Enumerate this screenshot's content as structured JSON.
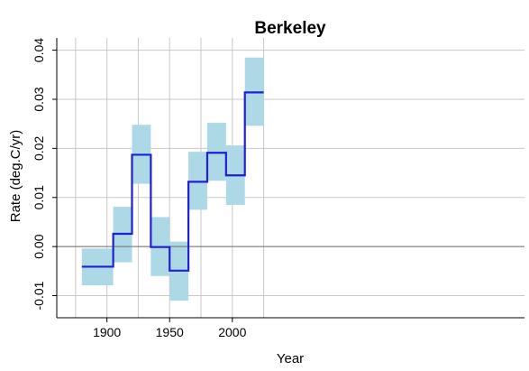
{
  "chart_data": {
    "type": "line",
    "title": "Berkeley",
    "xlabel": "Year",
    "ylabel": "Rate (deg.C/yr)",
    "xlim": [
      1860,
      2233
    ],
    "ylim": [
      -0.0145,
      0.0425
    ],
    "x_ticks": [
      1900,
      1950,
      2000
    ],
    "x_tick_labels": [
      "1900",
      "1950",
      "2000"
    ],
    "x_minor_grid": [
      1875,
      1925,
      1975,
      2025
    ],
    "y_ticks": [
      -0.01,
      0.0,
      0.01,
      0.02,
      0.03,
      0.04
    ],
    "y_tick_labels": [
      "-0.01",
      "0.00",
      "0.01",
      "0.02",
      "0.03",
      "0.04"
    ],
    "grid": true,
    "zero_line": true,
    "colors": {
      "line": "#1f1fd6",
      "band": "#add8e6",
      "grid": "#c8c8c8",
      "zero_line": "#707070",
      "axis": "#000000"
    },
    "segments": [
      {
        "x_start": 1880,
        "x_end": 1905,
        "rate": -0.0041,
        "lower": -0.0079,
        "upper": -0.0004
      },
      {
        "x_start": 1905,
        "x_end": 1920,
        "rate": 0.0026,
        "lower": -0.0032,
        "upper": 0.0081
      },
      {
        "x_start": 1920,
        "x_end": 1935,
        "rate": 0.0187,
        "lower": 0.0128,
        "upper": 0.0248
      },
      {
        "x_start": 1935,
        "x_end": 1950,
        "rate": -0.0001,
        "lower": -0.006,
        "upper": 0.006
      },
      {
        "x_start": 1950,
        "x_end": 1965,
        "rate": -0.0049,
        "lower": -0.011,
        "upper": 0.001
      },
      {
        "x_start": 1965,
        "x_end": 1980,
        "rate": 0.0132,
        "lower": 0.0075,
        "upper": 0.0193
      },
      {
        "x_start": 1980,
        "x_end": 1995,
        "rate": 0.0191,
        "lower": 0.0134,
        "upper": 0.0252
      },
      {
        "x_start": 1995,
        "x_end": 2010,
        "rate": 0.0145,
        "lower": 0.0085,
        "upper": 0.0206
      },
      {
        "x_start": 2010,
        "x_end": 2025,
        "rate": 0.0314,
        "lower": 0.0246,
        "upper": 0.0385
      }
    ]
  }
}
